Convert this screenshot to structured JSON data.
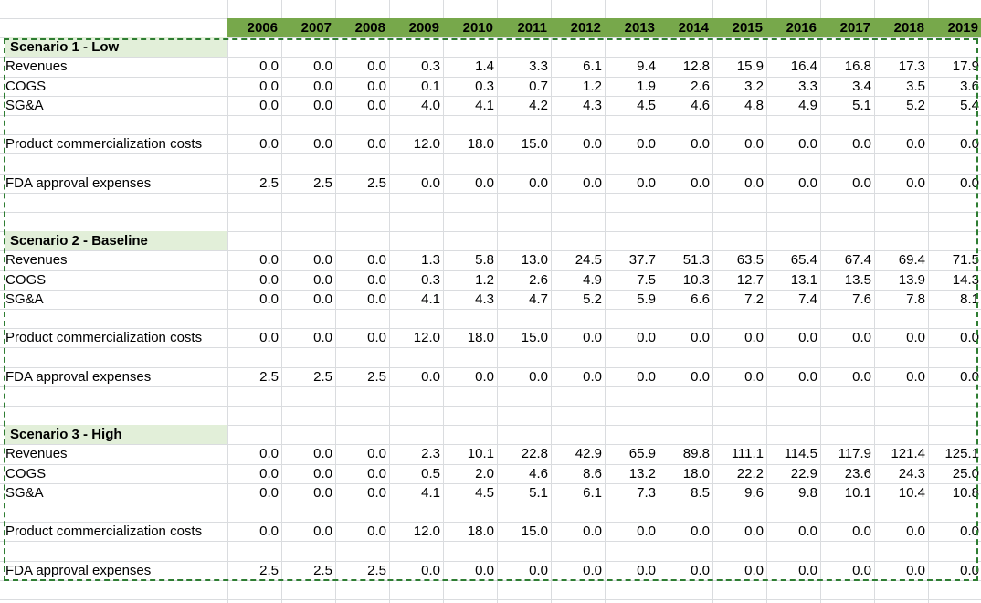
{
  "years": [
    "2006",
    "2007",
    "2008",
    "2009",
    "2010",
    "2011",
    "2012",
    "2013",
    "2014",
    "2015",
    "2016",
    "2017",
    "2018",
    "2019"
  ],
  "accent_colors": {
    "header_fill": "#77a84b",
    "title_fill": "#e2efd9",
    "selection_border": "#2e7d32",
    "gridline": "#dadcdf"
  },
  "scenarios": [
    {
      "title": "Scenario 1 - Low",
      "rows": [
        {
          "label": "Revenues",
          "values": [
            "0.0",
            "0.0",
            "0.0",
            "0.3",
            "1.4",
            "3.3",
            "6.1",
            "9.4",
            "12.8",
            "15.9",
            "16.4",
            "16.8",
            "17.3",
            "17.9"
          ]
        },
        {
          "label": "COGS",
          "values": [
            "0.0",
            "0.0",
            "0.0",
            "0.1",
            "0.3",
            "0.7",
            "1.2",
            "1.9",
            "2.6",
            "3.2",
            "3.3",
            "3.4",
            "3.5",
            "3.6"
          ]
        },
        {
          "label": "SG&A",
          "values": [
            "0.0",
            "0.0",
            "0.0",
            "4.0",
            "4.1",
            "4.2",
            "4.3",
            "4.5",
            "4.6",
            "4.8",
            "4.9",
            "5.1",
            "5.2",
            "5.4"
          ]
        },
        {
          "label": "Product commercialization costs",
          "values": [
            "0.0",
            "0.0",
            "0.0",
            "12.0",
            "18.0",
            "15.0",
            "0.0",
            "0.0",
            "0.0",
            "0.0",
            "0.0",
            "0.0",
            "0.0",
            "0.0"
          ]
        },
        {
          "label": "FDA approval expenses",
          "values": [
            "2.5",
            "2.5",
            "2.5",
            "0.0",
            "0.0",
            "0.0",
            "0.0",
            "0.0",
            "0.0",
            "0.0",
            "0.0",
            "0.0",
            "0.0",
            "0.0"
          ]
        }
      ]
    },
    {
      "title": "Scenario 2 - Baseline",
      "rows": [
        {
          "label": "Revenues",
          "values": [
            "0.0",
            "0.0",
            "0.0",
            "1.3",
            "5.8",
            "13.0",
            "24.5",
            "37.7",
            "51.3",
            "63.5",
            "65.4",
            "67.4",
            "69.4",
            "71.5"
          ]
        },
        {
          "label": "COGS",
          "values": [
            "0.0",
            "0.0",
            "0.0",
            "0.3",
            "1.2",
            "2.6",
            "4.9",
            "7.5",
            "10.3",
            "12.7",
            "13.1",
            "13.5",
            "13.9",
            "14.3"
          ]
        },
        {
          "label": "SG&A",
          "values": [
            "0.0",
            "0.0",
            "0.0",
            "4.1",
            "4.3",
            "4.7",
            "5.2",
            "5.9",
            "6.6",
            "7.2",
            "7.4",
            "7.6",
            "7.8",
            "8.1"
          ]
        },
        {
          "label": "Product commercialization costs",
          "values": [
            "0.0",
            "0.0",
            "0.0",
            "12.0",
            "18.0",
            "15.0",
            "0.0",
            "0.0",
            "0.0",
            "0.0",
            "0.0",
            "0.0",
            "0.0",
            "0.0"
          ]
        },
        {
          "label": "FDA approval expenses",
          "values": [
            "2.5",
            "2.5",
            "2.5",
            "0.0",
            "0.0",
            "0.0",
            "0.0",
            "0.0",
            "0.0",
            "0.0",
            "0.0",
            "0.0",
            "0.0",
            "0.0"
          ]
        }
      ]
    },
    {
      "title": "Scenario 3 - High",
      "rows": [
        {
          "label": "Revenues",
          "values": [
            "0.0",
            "0.0",
            "0.0",
            "2.3",
            "10.1",
            "22.8",
            "42.9",
            "65.9",
            "89.8",
            "111.1",
            "114.5",
            "117.9",
            "121.4",
            "125.1"
          ]
        },
        {
          "label": "COGS",
          "values": [
            "0.0",
            "0.0",
            "0.0",
            "0.5",
            "2.0",
            "4.6",
            "8.6",
            "13.2",
            "18.0",
            "22.2",
            "22.9",
            "23.6",
            "24.3",
            "25.0"
          ]
        },
        {
          "label": "SG&A",
          "values": [
            "0.0",
            "0.0",
            "0.0",
            "4.1",
            "4.5",
            "5.1",
            "6.1",
            "7.3",
            "8.5",
            "9.6",
            "9.8",
            "10.1",
            "10.4",
            "10.8"
          ]
        },
        {
          "label": "Product commercialization costs",
          "values": [
            "0.0",
            "0.0",
            "0.0",
            "12.0",
            "18.0",
            "15.0",
            "0.0",
            "0.0",
            "0.0",
            "0.0",
            "0.0",
            "0.0",
            "0.0",
            "0.0"
          ]
        },
        {
          "label": "FDA approval expenses",
          "values": [
            "2.5",
            "2.5",
            "2.5",
            "0.0",
            "0.0",
            "0.0",
            "0.0",
            "0.0",
            "0.0",
            "0.0",
            "0.0",
            "0.0",
            "0.0",
            "0.0"
          ]
        }
      ]
    }
  ]
}
